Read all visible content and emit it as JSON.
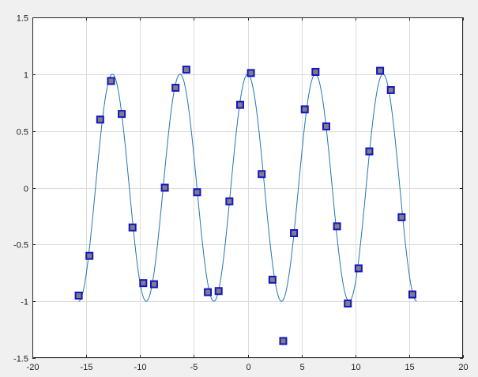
{
  "chart_data": {
    "type": "line",
    "title": "",
    "xlabel": "",
    "ylabel": "",
    "xlim": [
      -20,
      20
    ],
    "ylim": [
      -1.5,
      1.5
    ],
    "x_ticks": [
      -20,
      -15,
      -10,
      -5,
      0,
      5,
      10,
      15,
      20
    ],
    "y_ticks": [
      -1.5,
      -1,
      -0.5,
      0,
      0.5,
      1,
      1.5
    ],
    "x_tick_labels": [
      "-20",
      "-15",
      "-10",
      "-5",
      "0",
      "5",
      "10",
      "15",
      "20"
    ],
    "y_tick_labels": [
      "-1.5",
      "-1",
      "-0.5",
      "0",
      "0.5",
      "1",
      "1.5"
    ],
    "grid": true,
    "series": [
      {
        "kind": "line",
        "color": "#1f77b4",
        "function": "cos",
        "x_range": [
          -15.7,
          15.7
        ]
      },
      {
        "kind": "scatter",
        "marker": "square",
        "color": "#1414c8",
        "fill": "#808080",
        "points": [
          [
            -15.7,
            -0.95
          ],
          [
            -14.7,
            -0.6
          ],
          [
            -13.7,
            0.6
          ],
          [
            -12.7,
            0.94
          ],
          [
            -11.7,
            0.65
          ],
          [
            -10.7,
            -0.35
          ],
          [
            -9.7,
            -0.84
          ],
          [
            -8.7,
            -0.85
          ],
          [
            -7.7,
            0.0
          ],
          [
            -6.7,
            0.88
          ],
          [
            -5.7,
            1.04
          ],
          [
            -4.7,
            -0.04
          ],
          [
            -3.7,
            -0.92
          ],
          [
            -2.7,
            -0.91
          ],
          [
            -1.7,
            -0.12
          ],
          [
            -0.7,
            0.73
          ],
          [
            0.3,
            1.01
          ],
          [
            1.3,
            0.12
          ],
          [
            2.3,
            -0.81
          ],
          [
            3.3,
            -1.35
          ],
          [
            4.3,
            -0.4
          ],
          [
            5.3,
            0.69
          ],
          [
            6.3,
            1.02
          ],
          [
            7.3,
            0.54
          ],
          [
            8.3,
            -0.34
          ],
          [
            9.3,
            -1.02
          ],
          [
            10.3,
            -0.71
          ],
          [
            11.3,
            0.32
          ],
          [
            12.3,
            1.03
          ],
          [
            13.3,
            0.86
          ],
          [
            14.3,
            -0.26
          ],
          [
            15.3,
            -0.94
          ]
        ]
      }
    ]
  }
}
